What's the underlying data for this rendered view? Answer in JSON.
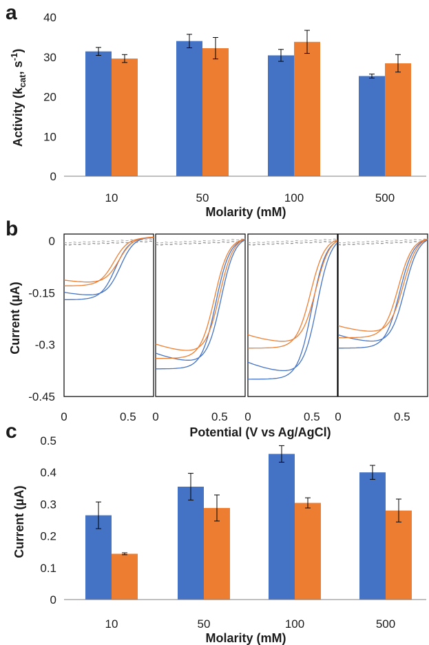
{
  "colors": {
    "blue": "#4472C4",
    "orange": "#ED7D31",
    "axis": "#7f7f7f",
    "dash": "#8c8c8c"
  },
  "chart_data": [
    {
      "panel": "a",
      "type": "bar",
      "categories": [
        "10",
        "50",
        "100",
        "500"
      ],
      "series": [
        {
          "values": [
            31.4,
            34.0,
            30.4,
            25.2
          ],
          "errors": [
            1.0,
            1.7,
            1.5,
            0.5
          ]
        },
        {
          "values": [
            29.6,
            32.2,
            33.8,
            28.4
          ],
          "errors": [
            1.0,
            2.7,
            2.9,
            2.2
          ]
        }
      ],
      "xlabel": "Molarity (mM)",
      "ylabel_main": "Activity (k",
      "ylabel_sub": "cat",
      "ylabel_mid": ", s",
      "ylabel_sup": "-1",
      "ylabel_end": ")",
      "ylim": [
        0,
        40
      ],
      "yticks": [
        "0",
        "10",
        "20",
        "30",
        "40"
      ],
      "grid": false
    },
    {
      "panel": "b",
      "type": "line",
      "description_subplots": 4,
      "ylabel": "Current (µA)",
      "xlabel": "Potential (V vs Ag/AgCl)",
      "xlim": [
        0,
        0.7
      ],
      "ylim": [
        -0.45,
        0.02
      ],
      "yticks": [
        "0",
        "-0.15",
        "-0.3",
        "-0.45"
      ],
      "xticks": [
        "0",
        "0.5"
      ],
      "subplots": [
        {
          "blue_min": -0.18,
          "orange_min": -0.14,
          "half_wave": 0.4
        },
        {
          "blue_min": -0.38,
          "orange_min": -0.35,
          "half_wave": 0.47
        },
        {
          "blue_min": -0.41,
          "orange_min": -0.32,
          "half_wave": 0.5
        },
        {
          "blue_min": -0.32,
          "orange_min": -0.29,
          "half_wave": 0.48
        }
      ]
    },
    {
      "panel": "c",
      "type": "bar",
      "categories": [
        "10",
        "50",
        "100",
        "500"
      ],
      "series": [
        {
          "values": [
            0.265,
            0.355,
            0.458,
            0.4
          ],
          "errors": [
            0.042,
            0.042,
            0.026,
            0.022
          ]
        },
        {
          "values": [
            0.144,
            0.288,
            0.304,
            0.28
          ],
          "errors": [
            0.003,
            0.041,
            0.016,
            0.036
          ]
        }
      ],
      "xlabel": "Molarity (mM)",
      "ylabel": "Current (µA)",
      "ylim": [
        0,
        0.5
      ],
      "yticks": [
        "0",
        "0.1",
        "0.2",
        "0.3",
        "0.4",
        "0.5"
      ],
      "grid": false
    }
  ]
}
